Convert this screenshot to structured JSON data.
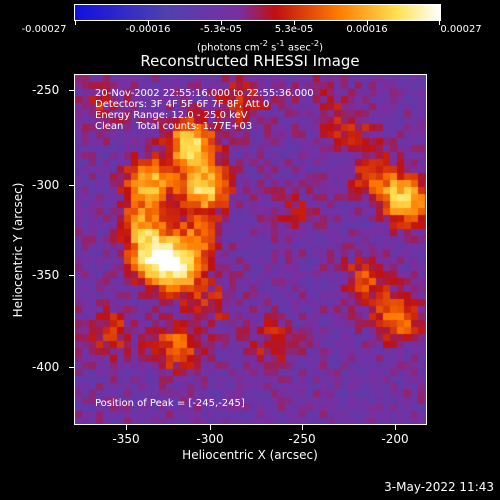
{
  "colorbar": {
    "labels": [
      "-0.00027",
      "-0.00016",
      "-5.3e-05",
      "5.3e-05",
      "0.00016",
      "0.00027"
    ],
    "units_html": "(photons cm<sup>-2</sup> s<sup>-1</sup> asec<sup>-2</sup>)",
    "colors": [
      "#1010e0",
      "#5040b0",
      "#7a2ea0",
      "#c01010",
      "#ff7a00",
      "#ffe050",
      "#ffffff"
    ]
  },
  "title": "Reconstructed RHESSI Image",
  "annotations": {
    "time_range": "20-Nov-2002 22:55:16.000 to 22:55:36.000",
    "detectors": "Detectors: 3F 4F 5F 6F 7F 8F, Att 0",
    "energy": "Energy Range: 12.0 - 25.0 keV",
    "method": "Clean    Total counts: 1.77E+03",
    "peak": "Position of Peak = [-245,-245]"
  },
  "axes": {
    "xlabel": "Heliocentric X (arcsec)",
    "ylabel": "Heliocentric Y (arcsec)",
    "xticks": [
      "-350",
      "-300",
      "-250",
      "-200"
    ],
    "yticks": [
      "-250",
      "-300",
      "-350",
      "-400"
    ]
  },
  "timestamp": "3-May-2022 11:43",
  "chart_data": {
    "type": "heatmap",
    "title": "Reconstructed RHESSI Image",
    "xlabel": "Heliocentric X (arcsec)",
    "ylabel": "Heliocentric Y (arcsec)",
    "xlim": [
      -375,
      -185
    ],
    "ylim": [
      -430,
      -240
    ],
    "colorbar_range": [
      -0.00027,
      0.00027
    ],
    "colorbar_ticks": [
      -0.00027,
      -0.00016,
      -5.3e-05,
      5.3e-05,
      0.00016,
      0.00027
    ],
    "peak": [
      -245,
      -245
    ],
    "sources": [
      {
        "x": -312,
        "y": -278,
        "value": 0.00027
      },
      {
        "x": -305,
        "y": -302,
        "value": 0.00026
      },
      {
        "x": -335,
        "y": -298,
        "value": 0.00022
      },
      {
        "x": -332,
        "y": -340,
        "value": 0.00026
      },
      {
        "x": -318,
        "y": -346,
        "value": 0.00023
      },
      {
        "x": -338,
        "y": -322,
        "value": 0.00018
      },
      {
        "x": -310,
        "y": -330,
        "value": 0.00014
      },
      {
        "x": -196,
        "y": -308,
        "value": 0.00025
      },
      {
        "x": -212,
        "y": -296,
        "value": 0.00012
      },
      {
        "x": -200,
        "y": -372,
        "value": 0.00016
      },
      {
        "x": -218,
        "y": -352,
        "value": 0.00012
      },
      {
        "x": -268,
        "y": -386,
        "value": 9e-05
      },
      {
        "x": -320,
        "y": -388,
        "value": 0.00015
      },
      {
        "x": -355,
        "y": -380,
        "value": 0.0001
      },
      {
        "x": -300,
        "y": -365,
        "value": 8e-05
      },
      {
        "x": -240,
        "y": -255,
        "value": 5e-05
      },
      {
        "x": -360,
        "y": -258,
        "value": 7e-05
      },
      {
        "x": -285,
        "y": -255,
        "value": 0.00011
      },
      {
        "x": -225,
        "y": -270,
        "value": 9e-05
      },
      {
        "x": -258,
        "y": -316,
        "value": 7e-05
      }
    ]
  }
}
